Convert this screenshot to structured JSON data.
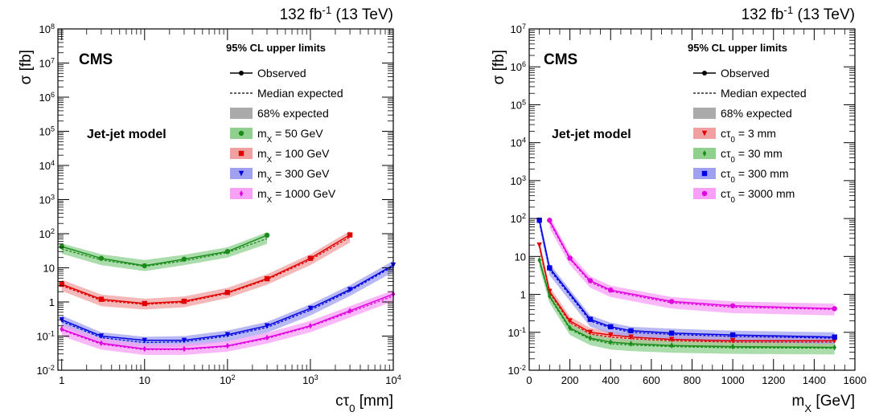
{
  "chart_data": [
    {
      "type": "line",
      "lumi_main": "132 fb",
      "lumi_sup": "-1",
      "lumi_tail": " (13 TeV)",
      "cms_label": "CMS",
      "legend_title": "95% CL upper limits",
      "model_label": "Jet-jet model",
      "ylabel": "σ [fb]",
      "xlabel_main": "cτ",
      "xlabel_sub": "0",
      "xlabel_tail": " [mm]",
      "x_scale": "log",
      "y_scale": "log",
      "xlim": [
        0.9,
        10000
      ],
      "ylim": [
        0.01,
        100000000
      ],
      "x_ticks": [
        {
          "value": 1,
          "base": "1",
          "exp": ""
        },
        {
          "value": 10,
          "base": "10",
          "exp": ""
        },
        {
          "value": 100,
          "base": "10",
          "exp": "2"
        },
        {
          "value": 1000,
          "base": "10",
          "exp": "3"
        },
        {
          "value": 10000,
          "base": "10",
          "exp": "4"
        }
      ],
      "y_ticks": [
        {
          "value": 0.01,
          "base": "10",
          "exp": "-2"
        },
        {
          "value": 0.1,
          "base": "10",
          "exp": "-1"
        },
        {
          "value": 1,
          "base": "1",
          "exp": ""
        },
        {
          "value": 10,
          "base": "10",
          "exp": ""
        },
        {
          "value": 100,
          "base": "10",
          "exp": "2"
        },
        {
          "value": 1000,
          "base": "10",
          "exp": "3"
        },
        {
          "value": 10000,
          "base": "10",
          "exp": "4"
        },
        {
          "value": 100000,
          "base": "10",
          "exp": "5"
        },
        {
          "value": 1000000,
          "base": "10",
          "exp": "6"
        },
        {
          "value": 10000000,
          "base": "10",
          "exp": "7"
        },
        {
          "value": 100000000,
          "base": "10",
          "exp": "8"
        }
      ],
      "legend_generic": [
        {
          "kind": "observed",
          "label": "Observed"
        },
        {
          "kind": "expected",
          "label": "Median expected"
        },
        {
          "kind": "band",
          "label": "68% expected"
        }
      ],
      "series": [
        {
          "label_main": "m",
          "label_sub": "X",
          "label_tail": " = 50 GeV",
          "color": "#1a8c1a",
          "band_color": "#8fd08f",
          "marker": "circle",
          "x": [
            1,
            3,
            10,
            30,
            100,
            300
          ],
          "observed": [
            42,
            19,
            11.5,
            18,
            30,
            90
          ],
          "expected": [
            36,
            17,
            11,
            16,
            28,
            72
          ],
          "band_lo": [
            26,
            12,
            8,
            12,
            20,
            50
          ],
          "band_hi": [
            52,
            25,
            17,
            24,
            40,
            110
          ]
        },
        {
          "label_main": "m",
          "label_sub": "X",
          "label_tail": " = 100 GeV",
          "color": "#e00000",
          "band_color": "#f0a0a0",
          "marker": "square",
          "x": [
            1,
            3,
            10,
            30,
            100,
            300,
            1000,
            3000
          ],
          "observed": [
            3.3,
            1.2,
            0.9,
            1.05,
            1.9,
            4.8,
            19,
            92
          ],
          "expected": [
            3.0,
            1.1,
            0.85,
            0.98,
            1.8,
            4.5,
            17,
            80
          ],
          "band_lo": [
            2.1,
            0.75,
            0.6,
            0.7,
            1.3,
            3.2,
            12,
            55
          ],
          "band_hi": [
            4.5,
            1.65,
            1.25,
            1.45,
            2.6,
            6.5,
            25,
            120
          ]
        },
        {
          "label_main": "m",
          "label_sub": "X",
          "label_tail": " = 300 GeV",
          "color": "#0000e0",
          "band_color": "#a0a0f0",
          "marker": "triangle",
          "x": [
            1,
            3,
            10,
            30,
            100,
            300,
            1000,
            3000,
            10000
          ],
          "observed": [
            0.3,
            0.1,
            0.075,
            0.075,
            0.11,
            0.2,
            0.65,
            2.3,
            12
          ],
          "expected": [
            0.27,
            0.09,
            0.065,
            0.068,
            0.1,
            0.18,
            0.58,
            2.1,
            11
          ],
          "band_lo": [
            0.19,
            0.063,
            0.046,
            0.048,
            0.07,
            0.125,
            0.4,
            1.5,
            7.5
          ],
          "band_hi": [
            0.4,
            0.13,
            0.095,
            0.1,
            0.145,
            0.26,
            0.85,
            3.1,
            16
          ]
        },
        {
          "label_main": "m",
          "label_sub": "X",
          "label_tail": " = 1000 GeV",
          "color": "#e000e0",
          "band_color": "#f8a0f8",
          "marker": "diamond",
          "x": [
            1,
            3,
            10,
            30,
            100,
            300,
            1000,
            3000,
            10000
          ],
          "observed": [
            0.16,
            0.062,
            0.042,
            0.042,
            0.052,
            0.09,
            0.2,
            0.55,
            1.7
          ],
          "expected": [
            0.15,
            0.058,
            0.04,
            0.04,
            0.05,
            0.085,
            0.19,
            0.5,
            1.5
          ],
          "band_lo": [
            0.1,
            0.04,
            0.028,
            0.028,
            0.035,
            0.06,
            0.13,
            0.35,
            1.05
          ],
          "band_hi": [
            0.22,
            0.085,
            0.058,
            0.058,
            0.072,
            0.125,
            0.28,
            0.75,
            2.2
          ]
        }
      ]
    },
    {
      "type": "line",
      "lumi_main": "132 fb",
      "lumi_sup": "-1",
      "lumi_tail": " (13 TeV)",
      "cms_label": "CMS",
      "legend_title": "95% CL upper limits",
      "model_label": "Jet-jet model",
      "ylabel": "σ [fb]",
      "xlabel_main": "m",
      "xlabel_sub": "X",
      "xlabel_tail": " [GeV]",
      "x_scale": "linear",
      "y_scale": "log",
      "xlim": [
        0,
        1600
      ],
      "ylim": [
        0.01,
        10000000
      ],
      "x_ticks": [
        {
          "value": 0,
          "base": "0",
          "exp": ""
        },
        {
          "value": 200,
          "base": "200",
          "exp": ""
        },
        {
          "value": 400,
          "base": "400",
          "exp": ""
        },
        {
          "value": 600,
          "base": "600",
          "exp": ""
        },
        {
          "value": 800,
          "base": "800",
          "exp": ""
        },
        {
          "value": 1000,
          "base": "1000",
          "exp": ""
        },
        {
          "value": 1200,
          "base": "1200",
          "exp": ""
        },
        {
          "value": 1400,
          "base": "1400",
          "exp": ""
        },
        {
          "value": 1600,
          "base": "1600",
          "exp": ""
        }
      ],
      "y_ticks": [
        {
          "value": 0.01,
          "base": "10",
          "exp": "-2"
        },
        {
          "value": 0.1,
          "base": "10",
          "exp": "-1"
        },
        {
          "value": 1,
          "base": "1",
          "exp": ""
        },
        {
          "value": 10,
          "base": "10",
          "exp": ""
        },
        {
          "value": 100,
          "base": "10",
          "exp": "2"
        },
        {
          "value": 1000,
          "base": "10",
          "exp": "3"
        },
        {
          "value": 10000,
          "base": "10",
          "exp": "4"
        },
        {
          "value": 100000,
          "base": "10",
          "exp": "5"
        },
        {
          "value": 1000000,
          "base": "10",
          "exp": "6"
        },
        {
          "value": 10000000,
          "base": "10",
          "exp": "7"
        }
      ],
      "legend_generic": [
        {
          "kind": "observed",
          "label": "Observed"
        },
        {
          "kind": "expected",
          "label": "Median expected"
        },
        {
          "kind": "band",
          "label": "68% expected"
        }
      ],
      "series": [
        {
          "label_main": "cτ",
          "label_sub": "0",
          "label_tail": " = 3 mm",
          "color": "#e00000",
          "band_color": "#f0a0a0",
          "marker": "triangle",
          "x": [
            50,
            100,
            200,
            300,
            400,
            500,
            700,
            1000,
            1500
          ],
          "observed": [
            20,
            1.2,
            0.2,
            0.1,
            0.085,
            0.075,
            0.065,
            0.06,
            0.06
          ],
          "expected": [
            18,
            1.1,
            0.18,
            0.09,
            0.075,
            0.068,
            0.06,
            0.055,
            0.055
          ],
          "band_lo": [
            13,
            0.8,
            0.13,
            0.065,
            0.053,
            0.048,
            0.042,
            0.039,
            0.039
          ],
          "band_hi": [
            26,
            1.6,
            0.26,
            0.13,
            0.105,
            0.095,
            0.085,
            0.078,
            0.078
          ]
        },
        {
          "label_main": "cτ",
          "label_sub": "0",
          "label_tail": " = 30 mm",
          "color": "#1a8c1a",
          "band_color": "#8fd08f",
          "marker": "diamond",
          "x": [
            50,
            100,
            200,
            300,
            400,
            500,
            700,
            1000,
            1500
          ],
          "observed": [
            8,
            0.9,
            0.13,
            0.07,
            0.055,
            0.05,
            0.045,
            0.042,
            0.04
          ],
          "expected": [
            7.5,
            0.85,
            0.12,
            0.065,
            0.05,
            0.046,
            0.042,
            0.039,
            0.038
          ],
          "band_lo": [
            5.2,
            0.6,
            0.085,
            0.046,
            0.035,
            0.032,
            0.029,
            0.027,
            0.026
          ],
          "band_hi": [
            11,
            1.2,
            0.17,
            0.092,
            0.07,
            0.065,
            0.06,
            0.055,
            0.054
          ]
        },
        {
          "label_main": "cτ",
          "label_sub": "0",
          "label_tail": " = 300 mm",
          "color": "#0000e0",
          "band_color": "#a0a0f0",
          "marker": "square",
          "x": [
            50,
            100,
            300,
            400,
            500,
            700,
            1000,
            1500
          ],
          "observed": [
            90,
            5,
            0.22,
            0.14,
            0.11,
            0.095,
            0.085,
            0.075
          ],
          "expected": [
            82,
            4.5,
            0.2,
            0.13,
            0.1,
            0.088,
            0.078,
            0.07
          ],
          "band_lo": [
            58,
            3.2,
            0.14,
            0.092,
            0.072,
            0.062,
            0.055,
            0.05
          ],
          "band_hi": [
            120,
            6.5,
            0.28,
            0.18,
            0.14,
            0.125,
            0.11,
            0.1
          ]
        },
        {
          "label_main": "cτ",
          "label_sub": "0",
          "label_tail": " = 3000 mm",
          "color": "#e000e0",
          "band_color": "#f8a0f8",
          "marker": "circle",
          "x": [
            100,
            200,
            300,
            400,
            700,
            1000,
            1500
          ],
          "observed": [
            90,
            9,
            2.3,
            1.3,
            0.65,
            0.5,
            0.42
          ],
          "expected": [
            80,
            8.5,
            2.1,
            1.2,
            0.6,
            0.46,
            0.4
          ],
          "band_lo": [
            56,
            6,
            1.5,
            0.85,
            0.42,
            0.32,
            0.28
          ],
          "band_hi": [
            115,
            12,
            3,
            1.7,
            0.85,
            0.65,
            0.57
          ]
        }
      ]
    }
  ]
}
